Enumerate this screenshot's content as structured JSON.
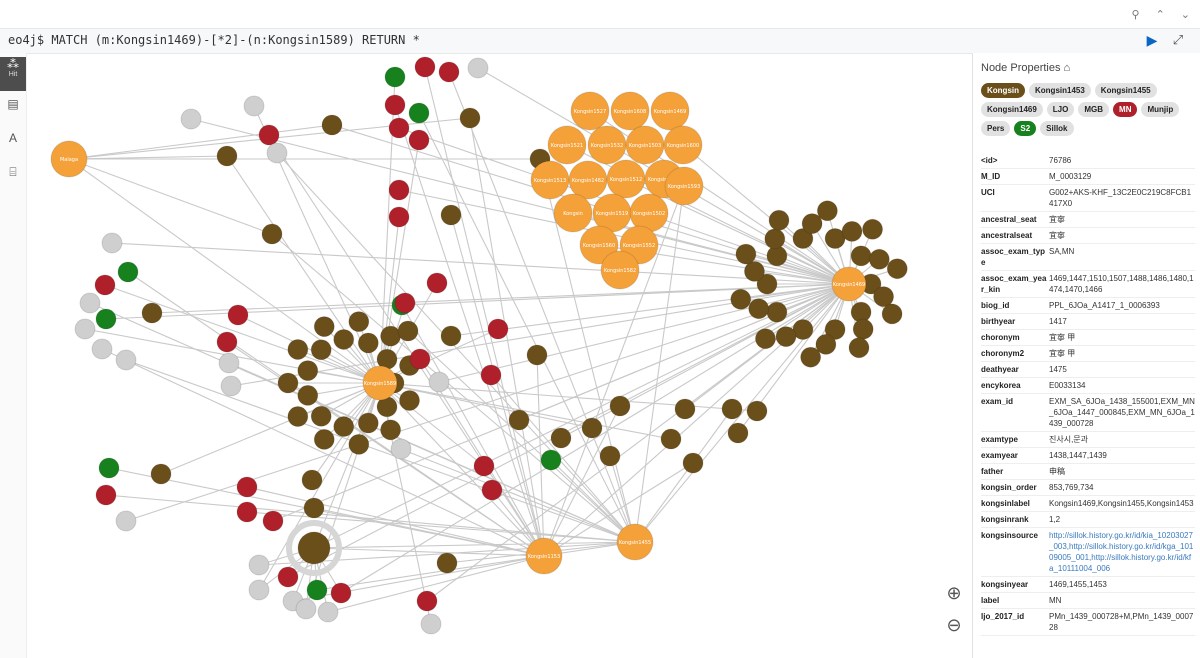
{
  "window": {
    "controls": [
      "⚲",
      "⌃",
      "⌄"
    ]
  },
  "query": {
    "prompt": "eo4j$",
    "text": "MATCH (m:Kongsin1469)-[*2]-(n:Kongsin1589) RETURN *"
  },
  "rail": {
    "items": [
      "",
      "Hit",
      "",
      "",
      ""
    ]
  },
  "colors": {
    "orange": "#f4a13a",
    "brown": "#6b4f1b",
    "red": "#b0202a",
    "green": "#17811e",
    "gray": "#cfcfcf"
  },
  "graph": {
    "hubs": [
      "Kongsin1469",
      "Kongsin1589",
      "Kongsin1153",
      "Kongsin1455"
    ],
    "kongsin_cluster": [
      "Kongsin1527",
      "Kongsin1608",
      "Kongsin1469",
      "Kongsin1521",
      "Kongsin1532",
      "Kongsin1503",
      "Kongsin1600",
      "Kongsin1513",
      "Kongsin1482",
      "Kongsin1512",
      "Kongsin1558",
      "Kongsin1593",
      "Kongsin",
      "Kongsin1519",
      "Kongsin1502",
      "Kongsin1560",
      "Kongsin1552",
      "Kongsin1582"
    ],
    "other_labels": [
      "Malaga"
    ]
  },
  "zoom": {
    "in_icon": "zoom-in",
    "out_icon": "zoom-out"
  },
  "panel": {
    "title": "Node Properties",
    "chips": [
      {
        "label": "Kongsin",
        "color": "#6b4f1b",
        "text": "#ffffff"
      },
      {
        "label": "Kongsin1453",
        "color": "#e1e1e1",
        "text": "#222222"
      },
      {
        "label": "Kongsin1455",
        "color": "#e1e1e1",
        "text": "#222222"
      },
      {
        "label": "Kongsin1469",
        "color": "#e1e1e1",
        "text": "#222222"
      },
      {
        "label": "LJO",
        "color": "#e1e1e1",
        "text": "#222222"
      },
      {
        "label": "MGB",
        "color": "#e1e1e1",
        "text": "#222222"
      },
      {
        "label": "MN",
        "color": "#b0202a",
        "text": "#ffffff"
      },
      {
        "label": "Munjip",
        "color": "#e1e1e1",
        "text": "#222222"
      },
      {
        "label": "Pers",
        "color": "#e1e1e1",
        "text": "#222222"
      },
      {
        "label": "S2",
        "color": "#17811e",
        "text": "#ffffff"
      },
      {
        "label": "Sillok",
        "color": "#e1e1e1",
        "text": "#222222"
      }
    ],
    "props": [
      {
        "k": "<id>",
        "v": "76786"
      },
      {
        "k": "M_ID",
        "v": "M_0003129"
      },
      {
        "k": "UCI",
        "v": "G002+AKS-KHF_13C2E0C219C8FCB1417X0"
      },
      {
        "k": "ancestral_seat",
        "v": "宜寧"
      },
      {
        "k": "ancestralseat",
        "v": "宜寧"
      },
      {
        "k": "assoc_exam_type",
        "v": "SA,MN"
      },
      {
        "k": "assoc_exam_year_kin",
        "v": "1469,1447,1510,1507,1488,1486,1480,1474,1470,1466"
      },
      {
        "k": "biog_id",
        "v": "PPL_6JOa_A1417_1_0006393"
      },
      {
        "k": "birthyear",
        "v": "1417"
      },
      {
        "k": "choronym",
        "v": "宜寧 甲"
      },
      {
        "k": "choronym2",
        "v": "宜寧 甲"
      },
      {
        "k": "deathyear",
        "v": "1475"
      },
      {
        "k": "encykorea",
        "v": "E0033134"
      },
      {
        "k": "exam_id",
        "v": "EXM_SA_6JOa_1438_155001,EXM_MN_6JOa_1447_000845,EXM_MN_6JOa_1439_000728"
      },
      {
        "k": "examtype",
        "v": "진사시,문과"
      },
      {
        "k": "examyear",
        "v": "1438,1447,1439"
      },
      {
        "k": "father",
        "v": "申稿"
      },
      {
        "k": "kongsin_order",
        "v": "853,769,734"
      },
      {
        "k": "kongsinlabel",
        "v": "Kongsin1469,Kongsin1455,Kongsin1453"
      },
      {
        "k": "kongsinrank",
        "v": "1,2"
      },
      {
        "k": "kongsinsource",
        "v": "http://sillok.history.go.kr/id/kia_10203027_003,http://sillok.history.go.kr/id/kga_10109005_001,http://sillok.history.go.kr/id/kfa_10111004_006",
        "link": true
      },
      {
        "k": "kongsinyear",
        "v": "1469,1455,1453"
      },
      {
        "k": "label",
        "v": "MN"
      },
      {
        "k": "ljo_2017_id",
        "v": "PMn_1439_000728+M,PMn_1439_000728"
      }
    ]
  }
}
